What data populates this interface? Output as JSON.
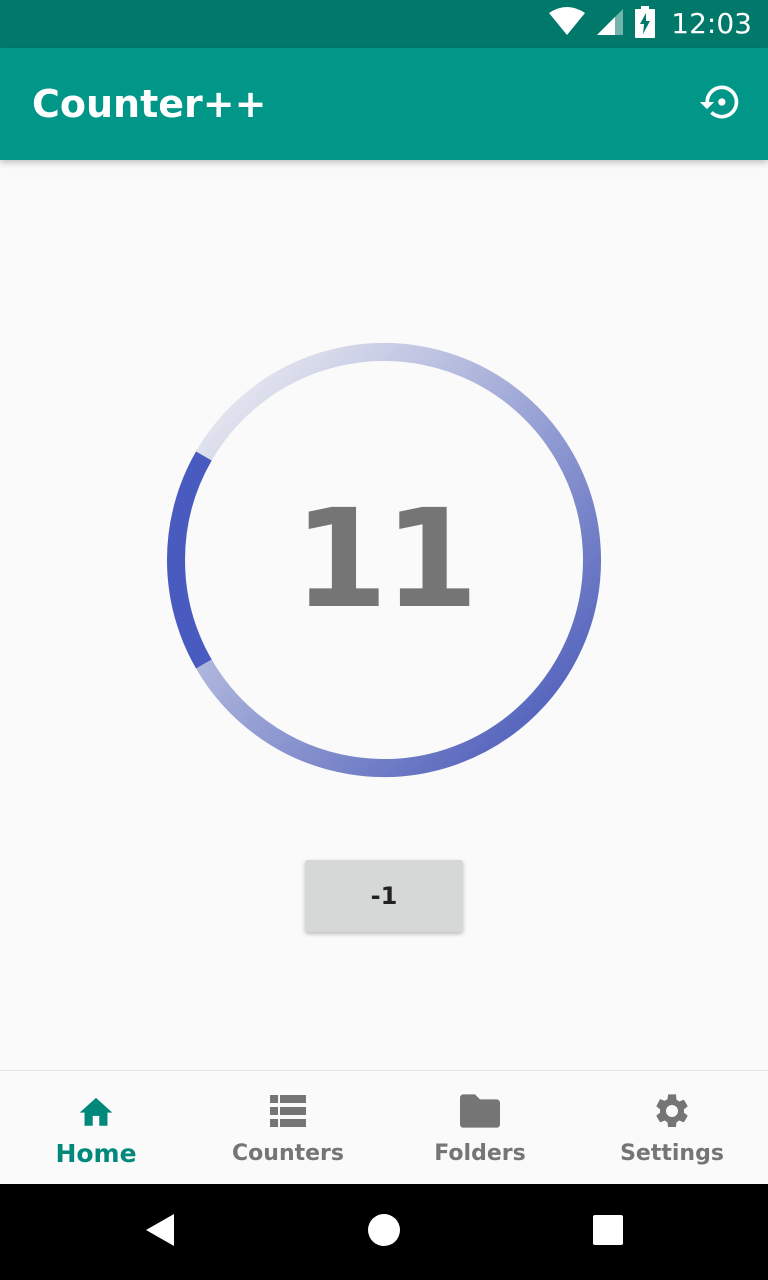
{
  "status_bar": {
    "time": "12:03",
    "icons": [
      "wifi-icon",
      "cell-signal-icon",
      "battery-charging-icon"
    ]
  },
  "app_bar": {
    "title": "Counter++",
    "action_icon": "restore-icon"
  },
  "counter": {
    "value": "11",
    "progress_fraction": 0.85,
    "decrement_label": "-1",
    "colors": {
      "ring_start": "#f5f5f5",
      "ring_end": "#3f51b5"
    }
  },
  "bottom_nav": {
    "items": [
      {
        "label": "Home",
        "icon": "home-icon",
        "active": true
      },
      {
        "label": "Counters",
        "icon": "list-icon",
        "active": false
      },
      {
        "label": "Folders",
        "icon": "folder-icon",
        "active": false
      },
      {
        "label": "Settings",
        "icon": "gear-icon",
        "active": false
      }
    ],
    "active_color": "#00897b",
    "inactive_color": "#757575"
  },
  "system_nav": {
    "buttons": [
      "back-icon",
      "home-circle-icon",
      "recents-icon"
    ]
  },
  "theme": {
    "primary": "#009688",
    "primary_dark": "#00796b",
    "background": "#fafafa"
  }
}
